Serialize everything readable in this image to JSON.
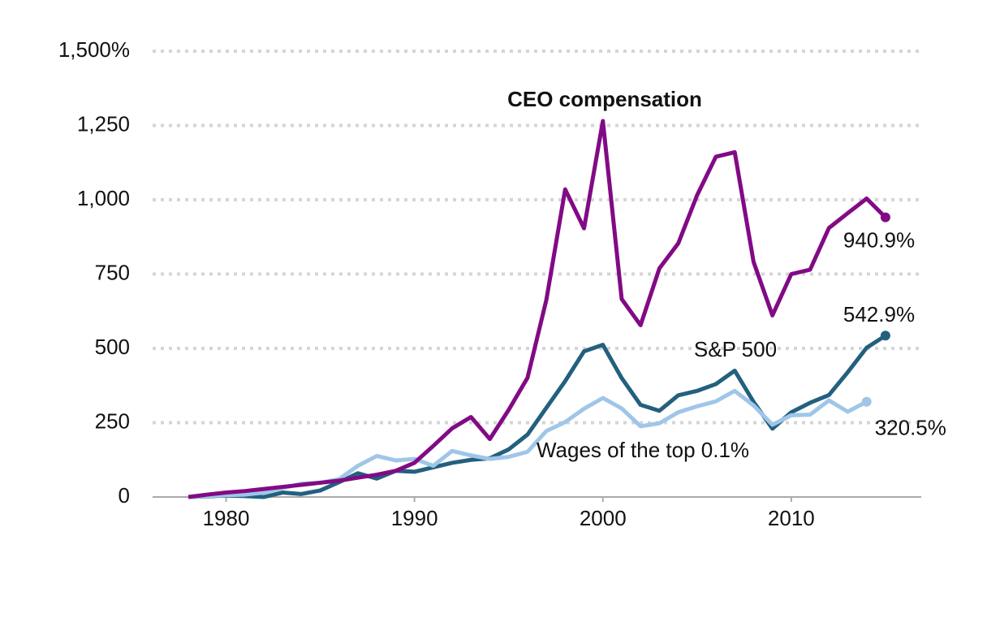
{
  "chart_data": {
    "type": "line",
    "x": [
      1978,
      1979,
      1980,
      1981,
      1982,
      1983,
      1984,
      1985,
      1986,
      1987,
      1988,
      1989,
      1990,
      1991,
      1992,
      1993,
      1994,
      1995,
      1996,
      1997,
      1998,
      1999,
      2000,
      2001,
      2002,
      2003,
      2004,
      2005,
      2006,
      2007,
      2008,
      2009,
      2010,
      2011,
      2012,
      2013,
      2014,
      2015
    ],
    "series": [
      {
        "name": "CEO compensation",
        "color": "#820a85",
        "values": [
          0,
          8,
          15,
          20,
          27,
          34,
          41,
          48,
          55,
          65,
          75,
          88,
          115,
          172,
          231,
          269,
          195,
          293,
          401,
          663,
          1035,
          904,
          1265,
          666,
          578,
          769,
          853,
          1015,
          1145,
          1160,
          791,
          611,
          750,
          765,
          905,
          955,
          1004,
          940.9
        ],
        "value_labels": [
          null,
          null,
          null,
          null,
          null,
          null,
          null,
          null,
          null,
          null,
          null,
          null,
          null,
          null,
          null,
          null,
          null,
          null,
          null,
          null,
          null,
          null,
          null,
          null,
          null,
          null,
          null,
          null,
          null,
          null,
          null,
          null,
          null,
          null,
          null,
          null,
          null,
          "940.9%"
        ]
      },
      {
        "name": "S&P 500",
        "color": "#23607f",
        "values": [
          0,
          2,
          5,
          3,
          0,
          15,
          10,
          22,
          50,
          80,
          62,
          88,
          85,
          100,
          115,
          125,
          130,
          160,
          210,
          300,
          390,
          490,
          512,
          400,
          310,
          290,
          342,
          357,
          380,
          425,
          320,
          230,
          285,
          317,
          343,
          420,
          502,
          542.9
        ],
        "value_labels": [
          null,
          null,
          null,
          null,
          null,
          null,
          null,
          null,
          null,
          null,
          null,
          null,
          null,
          null,
          null,
          null,
          null,
          null,
          null,
          null,
          null,
          null,
          null,
          null,
          null,
          null,
          null,
          null,
          null,
          null,
          null,
          null,
          null,
          null,
          null,
          null,
          null,
          "542.9%"
        ]
      },
      {
        "name": "Wages of the top 0.1%",
        "color": "#9fc6e8",
        "values": [
          0,
          3,
          6,
          8,
          15,
          30,
          45,
          48,
          60,
          105,
          138,
          123,
          128,
          105,
          155,
          140,
          128,
          135,
          152,
          222,
          252,
          297,
          333,
          298,
          238,
          248,
          285,
          305,
          322,
          357,
          308,
          243,
          275,
          277,
          325,
          287,
          320.5,
          null
        ],
        "value_labels": [
          null,
          null,
          null,
          null,
          null,
          null,
          null,
          null,
          null,
          null,
          null,
          null,
          null,
          null,
          null,
          null,
          null,
          null,
          null,
          null,
          null,
          null,
          null,
          null,
          null,
          null,
          null,
          null,
          null,
          null,
          null,
          null,
          null,
          null,
          null,
          null,
          "320.5%",
          null
        ]
      }
    ],
    "xlim": [
      1976.1,
      2016.9
    ],
    "xticks": [
      1980,
      1990,
      2000,
      2010
    ],
    "ylim": [
      0,
      1500
    ],
    "yticks": [
      0,
      250,
      500,
      750,
      {
        "value": 1000,
        "label": "1,000"
      },
      {
        "value": 1250,
        "label": "1,250"
      },
      {
        "value": 1500,
        "label": "1,500%"
      }
    ],
    "grid": true
  }
}
